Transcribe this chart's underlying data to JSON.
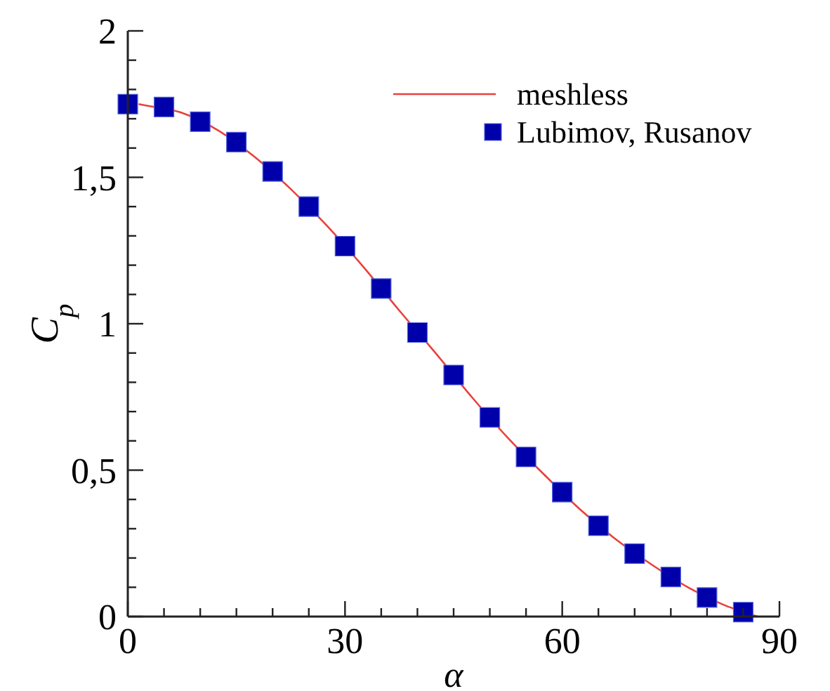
{
  "chart_data": {
    "type": "line",
    "xlabel": "α",
    "ylabel": "C$_{p}$",
    "xlim": [
      0,
      90
    ],
    "ylim": [
      0,
      2
    ],
    "xticks": [
      0,
      {
        "value": 5,
        "label": null
      },
      {
        "value": 10,
        "label": null
      },
      {
        "value": 15,
        "label": null
      },
      {
        "value": 20,
        "label": null
      },
      {
        "value": 25,
        "label": null
      },
      30,
      {
        "value": 35,
        "label": null
      },
      {
        "value": 40,
        "label": null
      },
      {
        "value": 45,
        "label": null
      },
      {
        "value": 50,
        "label": null
      },
      {
        "value": 55,
        "label": null
      },
      60,
      {
        "value": 65,
        "label": null
      },
      {
        "value": 70,
        "label": null
      },
      {
        "value": 75,
        "label": null
      },
      {
        "value": 80,
        "label": null
      },
      {
        "value": 85,
        "label": null
      },
      90
    ],
    "yticks": [
      0,
      {
        "value": 0.1,
        "label": null
      },
      {
        "value": 0.2,
        "label": null
      },
      {
        "value": 0.3,
        "label": null
      },
      {
        "value": 0.4,
        "label": null
      },
      {
        "value": 0.5,
        "label": "0,5"
      },
      {
        "value": 0.6,
        "label": null
      },
      {
        "value": 0.7,
        "label": null
      },
      {
        "value": 0.8,
        "label": null
      },
      {
        "value": 0.9,
        "label": null
      },
      1,
      {
        "value": 1.1,
        "label": null
      },
      {
        "value": 1.2,
        "label": null
      },
      {
        "value": 1.3,
        "label": null
      },
      {
        "value": 1.4,
        "label": null
      },
      {
        "value": 1.5,
        "label": "1,5"
      },
      {
        "value": 1.6,
        "label": null
      },
      {
        "value": 1.7,
        "label": null
      },
      {
        "value": 1.8,
        "label": null
      },
      {
        "value": 1.9,
        "label": null
      },
      2
    ],
    "grid": false,
    "legend": "top right",
    "series": [
      {
        "name": "meshless",
        "color": "#e8413c",
        "line_style": "solid",
        "marker": "none",
        "x": [
          1.5,
          2.5,
          7.5,
          12.5,
          17.5,
          22.5,
          27.5,
          32.5,
          37.5,
          42.5,
          47.5,
          52.5,
          57.5,
          62.5,
          67.5,
          72.5,
          77.5,
          82.5,
          87
        ],
        "values": [
          1.75,
          1.745,
          1.72,
          1.66,
          1.57,
          1.46,
          1.335,
          1.195,
          1.045,
          0.9,
          0.75,
          0.61,
          0.485,
          0.365,
          0.262,
          0.175,
          0.098,
          0.038,
          0
        ]
      },
      {
        "name": "Lubimov, Rusanov",
        "type": "scatter",
        "color": "#0000aa",
        "marker": "square",
        "x": [
          0,
          5,
          10,
          15,
          20,
          25,
          30,
          35,
          40,
          45,
          50,
          55,
          60,
          65,
          70,
          75,
          80,
          85
        ],
        "values": [
          1.75,
          1.74,
          1.69,
          1.62,
          1.52,
          1.4,
          1.265,
          1.12,
          0.97,
          0.825,
          0.68,
          0.545,
          0.425,
          0.31,
          0.215,
          0.135,
          0.065,
          0.015
        ]
      }
    ]
  }
}
